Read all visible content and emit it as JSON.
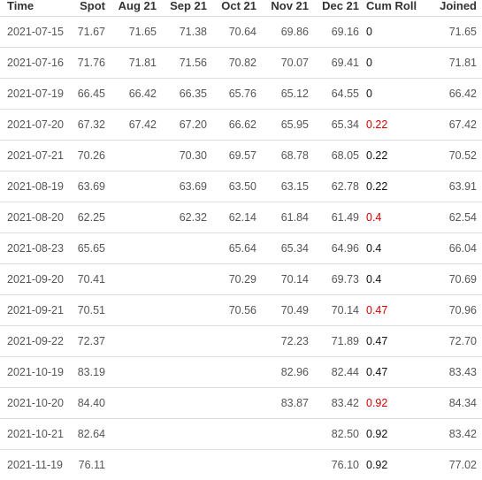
{
  "headers": [
    "Time",
    "Spot",
    "Aug 21",
    "Sep 21",
    "Oct 21",
    "Nov 21",
    "Dec 21",
    "Cum Roll",
    "Joined"
  ],
  "rows": [
    {
      "time": "2021-07-15",
      "spot": "71.67",
      "aug": "71.65",
      "sep": "71.38",
      "oct": "70.64",
      "nov": "69.86",
      "dec": "69.16",
      "cum": "0",
      "cum_color": "black",
      "joined": "71.65"
    },
    {
      "time": "2021-07-16",
      "spot": "71.76",
      "aug": "71.81",
      "sep": "71.56",
      "oct": "70.82",
      "nov": "70.07",
      "dec": "69.41",
      "cum": "0",
      "cum_color": "black",
      "joined": "71.81"
    },
    {
      "time": "2021-07-19",
      "spot": "66.45",
      "aug": "66.42",
      "sep": "66.35",
      "oct": "65.76",
      "nov": "65.12",
      "dec": "64.55",
      "cum": "0",
      "cum_color": "black",
      "joined": "66.42"
    },
    {
      "time": "2021-07-20",
      "spot": "67.32",
      "aug": "67.42",
      "sep": "67.20",
      "oct": "66.62",
      "nov": "65.95",
      "dec": "65.34",
      "cum": "0.22",
      "cum_color": "red",
      "joined": "67.42"
    },
    {
      "time": "2021-07-21",
      "spot": "70.26",
      "aug": "",
      "sep": "70.30",
      "oct": "69.57",
      "nov": "68.78",
      "dec": "68.05",
      "cum": "0.22",
      "cum_color": "black",
      "joined": "70.52"
    },
    {
      "time": "2021-08-19",
      "spot": "63.69",
      "aug": "",
      "sep": "63.69",
      "oct": "63.50",
      "nov": "63.15",
      "dec": "62.78",
      "cum": "0.22",
      "cum_color": "black",
      "joined": "63.91"
    },
    {
      "time": "2021-08-20",
      "spot": "62.25",
      "aug": "",
      "sep": "62.32",
      "oct": "62.14",
      "nov": "61.84",
      "dec": "61.49",
      "cum": "0.4",
      "cum_color": "red",
      "joined": "62.54"
    },
    {
      "time": "2021-08-23",
      "spot": "65.65",
      "aug": "",
      "sep": "",
      "oct": "65.64",
      "nov": "65.34",
      "dec": "64.96",
      "cum": "0.4",
      "cum_color": "black",
      "joined": "66.04"
    },
    {
      "time": "2021-09-20",
      "spot": "70.41",
      "aug": "",
      "sep": "",
      "oct": "70.29",
      "nov": "70.14",
      "dec": "69.73",
      "cum": "0.4",
      "cum_color": "black",
      "joined": "70.69"
    },
    {
      "time": "2021-09-21",
      "spot": "70.51",
      "aug": "",
      "sep": "",
      "oct": "70.56",
      "nov": "70.49",
      "dec": "70.14",
      "cum": "0.47",
      "cum_color": "red",
      "joined": "70.96"
    },
    {
      "time": "2021-09-22",
      "spot": "72.37",
      "aug": "",
      "sep": "",
      "oct": "",
      "nov": "72.23",
      "dec": "71.89",
      "cum": "0.47",
      "cum_color": "black",
      "joined": "72.70"
    },
    {
      "time": "2021-10-19",
      "spot": "83.19",
      "aug": "",
      "sep": "",
      "oct": "",
      "nov": "82.96",
      "dec": "82.44",
      "cum": "0.47",
      "cum_color": "black",
      "joined": "83.43"
    },
    {
      "time": "2021-10-20",
      "spot": "84.40",
      "aug": "",
      "sep": "",
      "oct": "",
      "nov": "83.87",
      "dec": "83.42",
      "cum": "0.92",
      "cum_color": "red",
      "joined": "84.34"
    },
    {
      "time": "2021-10-21",
      "spot": "82.64",
      "aug": "",
      "sep": "",
      "oct": "",
      "nov": "",
      "dec": "82.50",
      "cum": "0.92",
      "cum_color": "black",
      "joined": "83.42"
    },
    {
      "time": "2021-11-19",
      "spot": "76.11",
      "aug": "",
      "sep": "",
      "oct": "",
      "nov": "",
      "dec": "76.10",
      "cum": "0.92",
      "cum_color": "black",
      "joined": "77.02"
    }
  ]
}
